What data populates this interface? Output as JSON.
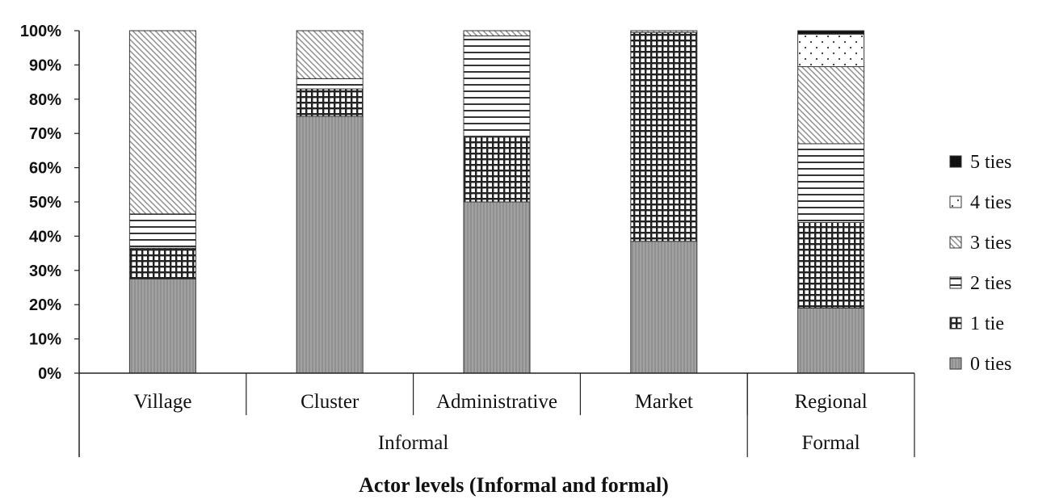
{
  "chart_data": {
    "type": "bar",
    "stacked": true,
    "percent": true,
    "categories": [
      "Village",
      "Cluster",
      "Administrative",
      "Market",
      "Regional"
    ],
    "groups": [
      {
        "label": "Informal",
        "categories": [
          "Village",
          "Cluster",
          "Administrative",
          "Market"
        ]
      },
      {
        "label": "Formal",
        "categories": [
          "Regional"
        ]
      }
    ],
    "xlabel": "Actor levels (Informal and formal)",
    "ylabel": "",
    "ylim": [
      0,
      100
    ],
    "yticks": [
      "0%",
      "10%",
      "20%",
      "30%",
      "40%",
      "50%",
      "60%",
      "70%",
      "80%",
      "90%",
      "100%"
    ],
    "legend_position": "right",
    "series": [
      {
        "name": "0 ties",
        "pattern": "solid-gray",
        "values": [
          27.5,
          75,
          50,
          38.5,
          19
        ]
      },
      {
        "name": "1 tie",
        "pattern": "grid",
        "values": [
          9,
          8,
          19,
          61,
          25
        ]
      },
      {
        "name": "2 ties",
        "pattern": "horizontal-lines",
        "values": [
          10,
          3,
          29.5,
          0,
          23
        ]
      },
      {
        "name": "3 ties",
        "pattern": "diagonal-lines",
        "values": [
          53.5,
          14,
          1.5,
          0.5,
          22.5
        ]
      },
      {
        "name": "4 ties",
        "pattern": "dots",
        "values": [
          0,
          0,
          0,
          0,
          9.5
        ]
      },
      {
        "name": "5 ties",
        "pattern": "solid-black",
        "values": [
          0,
          0,
          0,
          0,
          1
        ]
      }
    ]
  }
}
